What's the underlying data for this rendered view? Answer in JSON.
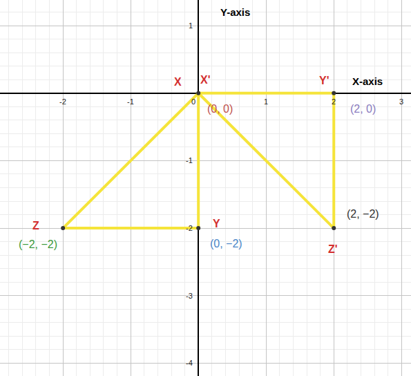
{
  "chart_data": {
    "type": "line",
    "xlim": [
      -2.93,
      3.14
    ],
    "ylim": [
      -4.19,
      1.38
    ],
    "xticks": [
      -2,
      -1,
      0,
      1,
      2,
      3
    ],
    "yticks": [
      -4,
      -3,
      -2,
      -1,
      1
    ],
    "grid": true,
    "series": [
      {
        "x": [
          0,
          0,
          -2,
          0
        ],
        "values": [
          0,
          -2,
          -2,
          0
        ],
        "color": "#f5e43a"
      },
      {
        "x": [
          0,
          2,
          2,
          0
        ],
        "values": [
          0,
          0,
          -2,
          0
        ],
        "color": "#f5e43a"
      }
    ],
    "points": {
      "x": [
        0,
        2,
        2,
        0,
        -2
      ],
      "values": [
        0,
        0,
        -2,
        -2,
        -2
      ],
      "color": "#333333"
    },
    "axis_labels": [
      {
        "text": "Y-axis",
        "x": 0.54,
        "y": 1.2
      },
      {
        "text": "X-axis",
        "x": 2.5,
        "y": 0.18
      }
    ],
    "vertex_labels": [
      {
        "text": "X",
        "x": -0.3,
        "y": 0.17,
        "color": "#d32f2f"
      },
      {
        "text": "X'",
        "x": 0.1,
        "y": 0.2,
        "color": "#d32f2f"
      },
      {
        "text": "Y'",
        "x": 1.85,
        "y": 0.19,
        "color": "#d32f2f"
      },
      {
        "text": "Y",
        "x": 0.27,
        "y": -1.93,
        "color": "#d32f2f"
      },
      {
        "text": "Z",
        "x": -2.4,
        "y": -1.96,
        "color": "#d32f2f"
      },
      {
        "text": "Z'",
        "x": 1.99,
        "y": -2.31,
        "color": "#d32f2f"
      }
    ],
    "coordinate_labels": [
      {
        "text": "(0, 0)",
        "x": 0.32,
        "y": -0.23,
        "color": "#c0504d"
      },
      {
        "text": "(2, 0)",
        "x": 2.43,
        "y": -0.23,
        "color": "#8a7cc0"
      },
      {
        "text": "(2, −2)",
        "x": 2.43,
        "y": -1.79,
        "color": "#333333"
      },
      {
        "text": "(0, −2)",
        "x": 0.41,
        "y": -2.23,
        "color": "#4a86c8"
      },
      {
        "text": "(−2, −2)",
        "x": -2.37,
        "y": -2.24,
        "color": "#3c9a3c"
      }
    ]
  }
}
